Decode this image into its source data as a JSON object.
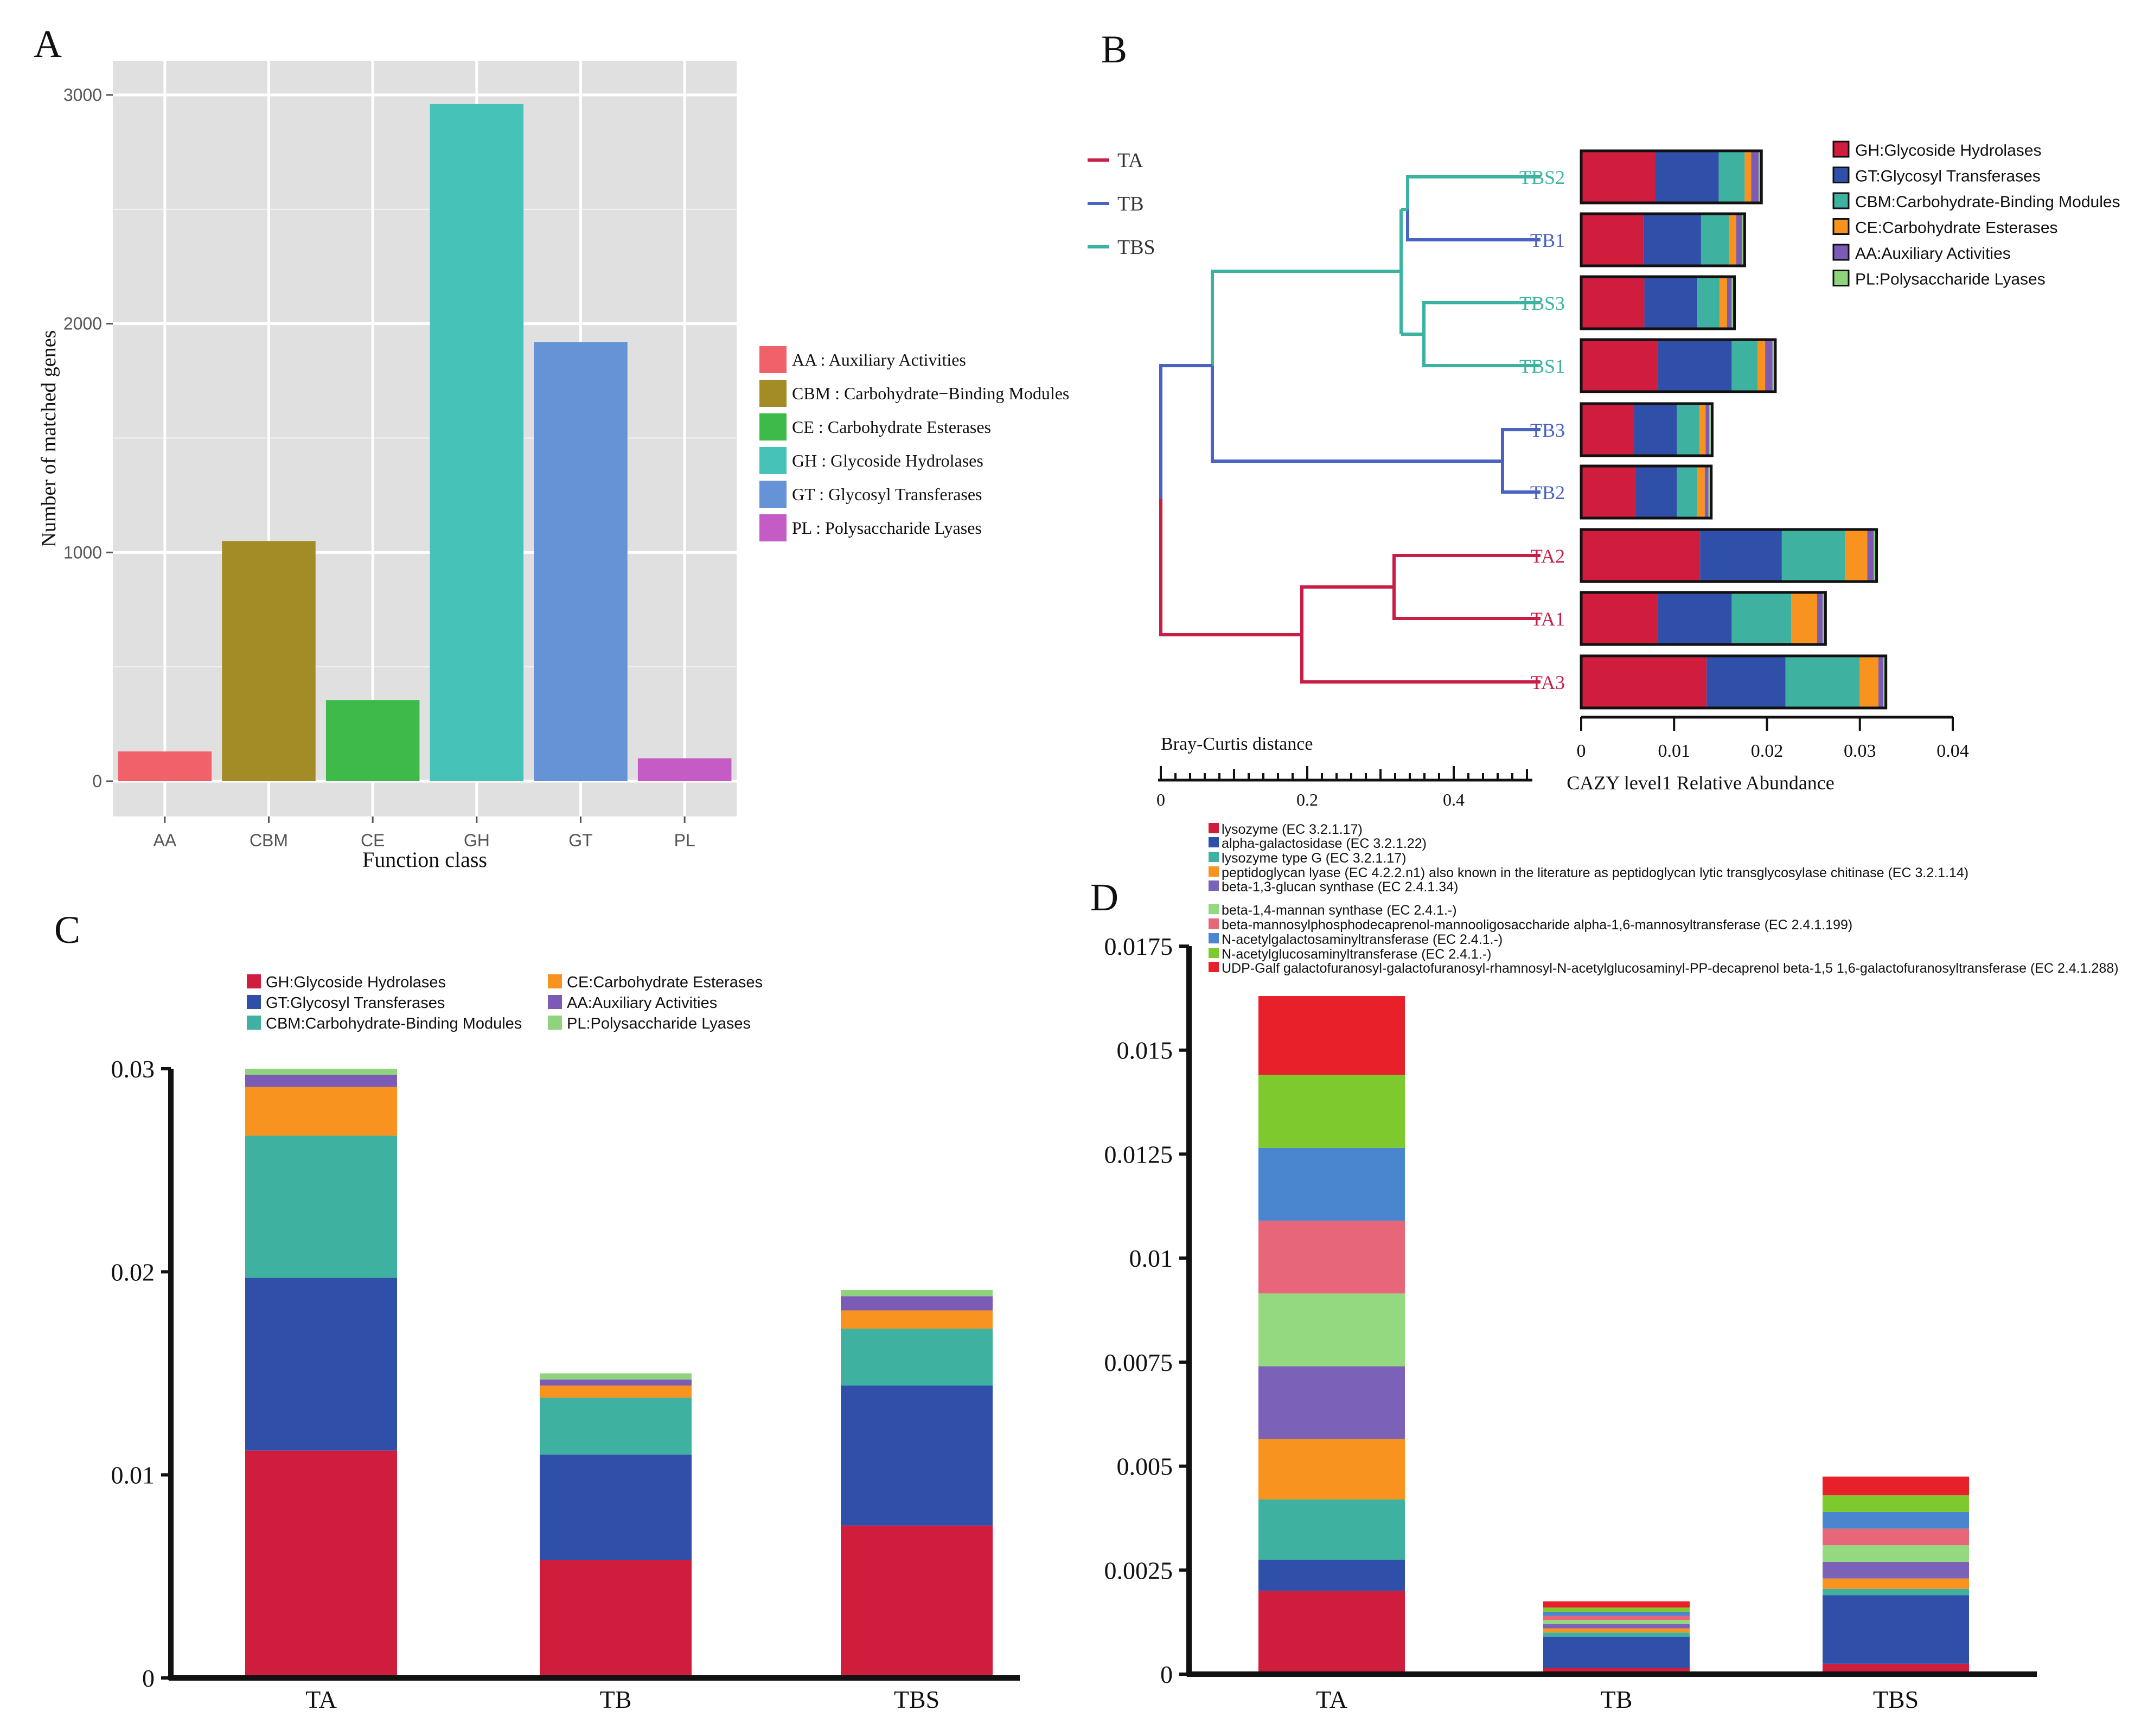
{
  "panel_labels": {
    "a": "A",
    "b": "B",
    "c": "C",
    "d": "D"
  },
  "colors": {
    "GH": "#d01c3d",
    "GT": "#2f4fa8",
    "CBM": "#3fb1a1",
    "CE": "#f7931e",
    "AA": "#7b5bb5",
    "PL": "#8fd47c",
    "TA": "#c81e45",
    "TB": "#4a62c0",
    "TBS": "#3bb3a0"
  },
  "chart_data": [
    {
      "id": "A",
      "type": "bar",
      "xlabel": "Function class",
      "ylabel": "Number of matched genes",
      "categories": [
        "AA",
        "CBM",
        "CE",
        "GH",
        "GT",
        "PL"
      ],
      "values": [
        130,
        1050,
        355,
        2960,
        1920,
        100
      ],
      "bar_colors": [
        "#f0616a",
        "#a38c26",
        "#3dba4a",
        "#46c2b8",
        "#6692d6",
        "#c55cc6"
      ],
      "ylim": [
        0,
        3000
      ],
      "yticks": [
        "0",
        "1000",
        "2000",
        "3000"
      ],
      "grid": true,
      "legend": [
        "AA : Auxiliary Activities",
        "CBM : Carbohydrate−Binding Modules",
        "CE : Carbohydrate Esterases",
        "GH : Glycoside Hydrolases",
        "GT : Glycosyl Transferases",
        "PL : Polysaccharide Lyases"
      ],
      "legend_position": "right"
    },
    {
      "id": "B",
      "type": "bar",
      "orientation": "horizontal-stacked",
      "xlabel": "CAZY level1 Relative Abundance",
      "xticks": [
        "0",
        "0.01",
        "0.02",
        "0.03",
        "0.04"
      ],
      "xlim": [
        0,
        0.04
      ],
      "dendrogram_scale_label": "Bray-Curtis distance",
      "dendrogram_ticks": [
        "0",
        "0.2",
        "0.4"
      ],
      "group_legend": [
        "TA",
        "TB",
        "TBS"
      ],
      "samples": [
        {
          "name": "TBS2",
          "group": "TBS",
          "values": [
            0.008,
            0.0068,
            0.0028,
            0.0007,
            0.0008,
            0.0003
          ]
        },
        {
          "name": "TB1",
          "group": "TB",
          "values": [
            0.0067,
            0.0062,
            0.003,
            0.0008,
            0.0006,
            0.0003
          ]
        },
        {
          "name": "TBS3",
          "group": "TBS",
          "values": [
            0.0068,
            0.0057,
            0.0024,
            0.0008,
            0.0005,
            0.0003
          ]
        },
        {
          "name": "TBS1",
          "group": "TBS",
          "values": [
            0.0082,
            0.008,
            0.0028,
            0.0008,
            0.0008,
            0.0003
          ]
        },
        {
          "name": "TB3",
          "group": "TB",
          "values": [
            0.0057,
            0.0046,
            0.0024,
            0.0007,
            0.0004,
            0.0003
          ]
        },
        {
          "name": "TB2",
          "group": "TB",
          "values": [
            0.0058,
            0.0045,
            0.0022,
            0.0008,
            0.0004,
            0.0003
          ]
        },
        {
          "name": "TA2",
          "group": "TA",
          "values": [
            0.0128,
            0.0088,
            0.0068,
            0.0024,
            0.0007,
            0.0003
          ]
        },
        {
          "name": "TA1",
          "group": "TA",
          "values": [
            0.0082,
            0.008,
            0.0064,
            0.0028,
            0.0006,
            0.0003
          ]
        },
        {
          "name": "TA3",
          "group": "TA",
          "values": [
            0.0135,
            0.0085,
            0.008,
            0.002,
            0.0005,
            0.0003
          ]
        }
      ],
      "series": [
        {
          "name": "GH:Glycoside Hydrolases"
        },
        {
          "name": "GT:Glycosyl Transferases"
        },
        {
          "name": "CBM:Carbohydrate-Binding Modules"
        },
        {
          "name": "CE:Carbohydrate Esterases"
        },
        {
          "name": "AA:Auxiliary Activities"
        },
        {
          "name": "PL:Polysaccharide Lyases"
        }
      ]
    },
    {
      "id": "C",
      "type": "bar",
      "stacked": true,
      "categories": [
        "TA",
        "TB",
        "TBS"
      ],
      "ylim": [
        0,
        0.03
      ],
      "yticks": [
        "0",
        "0.01",
        "0.02",
        "0.03"
      ],
      "series": [
        {
          "name": "GH:Glycoside Hydrolases",
          "values": [
            0.0112,
            0.0058,
            0.0075
          ]
        },
        {
          "name": "GT:Glycosyl Transferases",
          "values": [
            0.0085,
            0.0052,
            0.0069
          ]
        },
        {
          "name": "CBM:Carbohydrate-Binding Modules",
          "values": [
            0.007,
            0.0028,
            0.0028
          ]
        },
        {
          "name": "CE:Carbohydrate Esterases",
          "values": [
            0.0024,
            0.0006,
            0.0009
          ]
        },
        {
          "name": "AA:Auxiliary Activities",
          "values": [
            0.0006,
            0.0003,
            0.0007
          ]
        },
        {
          "name": "PL:Polysaccharide Lyases",
          "values": [
            0.0003,
            0.0003,
            0.0003
          ]
        }
      ]
    },
    {
      "id": "D",
      "type": "bar",
      "stacked": true,
      "categories": [
        "TA",
        "TB",
        "TBS"
      ],
      "ylim": [
        0,
        0.0175
      ],
      "yticks": [
        "0",
        "0.0025",
        "0.005",
        "0.0075",
        "0.01",
        "0.0125",
        "0.015",
        "0.0175"
      ],
      "series": [
        {
          "name": "lysozyme (EC 3.2.1.17)",
          "color": "#d01c3d",
          "values": [
            0.002,
            0.00015,
            0.00025
          ]
        },
        {
          "name": "alpha-galactosidase (EC 3.2.1.22)",
          "color": "#2f4fa8",
          "values": [
            0.00075,
            0.00075,
            0.00165
          ]
        },
        {
          "name": "lysozyme type G (EC 3.2.1.17)",
          "color": "#3fb1a1",
          "values": [
            0.00145,
            0.0001,
            0.00015
          ]
        },
        {
          "name": "peptidoglycan lyase (EC 4.2.2.n1) also known in the literature as peptidoglycan lytic transglycosylase chitinase (EC 3.2.1.14)",
          "color": "#f7931e",
          "values": [
            0.00145,
            0.0001,
            0.00025
          ]
        },
        {
          "name": "beta-1,3-glucan synthase (EC 2.4.1.34)",
          "color": "#7b62b8",
          "values": [
            0.00175,
            0.0001,
            0.0004
          ]
        },
        {
          "name": "beta-1,4-mannan synthase (EC 2.4.1.-)",
          "color": "#94d97f",
          "values": [
            0.00175,
            0.0001,
            0.0004
          ]
        },
        {
          "name": "beta-mannosylphosphodecaprenol-mannooligosaccharide alpha-1,6-mannosyltransferase (EC 2.4.1.199)",
          "color": "#e8667a",
          "values": [
            0.00175,
            0.0001,
            0.0004
          ]
        },
        {
          "name": "N-acetylgalactosaminyltransferase (EC 2.4.1.-)",
          "color": "#4a86d0",
          "values": [
            0.00175,
            0.0001,
            0.0004
          ]
        },
        {
          "name": "N-acetylglucosaminyltransferase (EC 2.4.1.-)",
          "color": "#7ec92e",
          "values": [
            0.00175,
            0.0001,
            0.0004
          ]
        },
        {
          "name": "UDP-Galf galactofuranosyl-galactofuranosyl-rhamnosyl-N-acetylglucosaminyl-PP-decaprenol beta-1,5 1,6-galactofuranosyltransferase (EC 2.4.1.288)",
          "color": "#e8202a",
          "values": [
            0.0019,
            0.00015,
            0.00045
          ]
        }
      ]
    }
  ]
}
